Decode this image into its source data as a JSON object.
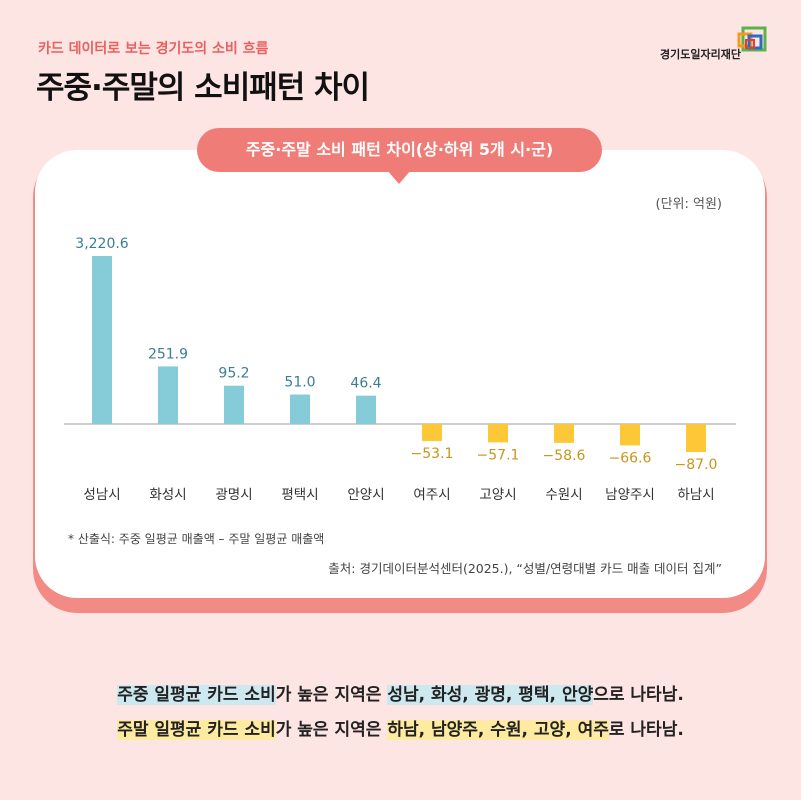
{
  "header": {
    "subtitle": "카드 데이터로 보는 경기도의 소비 흐름",
    "title": "주중·주말의 소비패턴 차이",
    "logo_text": "경기도일자리재단"
  },
  "chart_data": {
    "type": "bar",
    "title": "주중·주말 소비 패턴 차이(상·하위 5개 시·군)",
    "unit": "(단위: 억원)",
    "categories": [
      "성남시",
      "화성시",
      "광명시",
      "평택시",
      "안양시",
      "여주시",
      "고양시",
      "수원시",
      "남양주시",
      "하남시"
    ],
    "values": [
      3220.6,
      251.9,
      95.2,
      51.0,
      46.4,
      -53.1,
      -57.1,
      -58.6,
      -66.6,
      -87.0
    ],
    "value_labels": [
      "3,220.6",
      "251.9",
      "95.2",
      "51.0",
      "46.4",
      "−53.1",
      "−57.1",
      "−58.6",
      "−66.6",
      "−87.0"
    ],
    "colors": {
      "positive": "#86cbd8",
      "negative": "#fdc837",
      "positive_label": "#3b7e93",
      "negative_label": "#c9951b"
    },
    "xlabel": "",
    "ylabel": ""
  },
  "footnote": "*  산출식: 주중 일평균 매출액 – 주말 일평균 매출액",
  "source": "출처: 경기데이터분석센터(2025.), “성별/연령대별 카드 매출 데이터 집계”",
  "summary": {
    "line1": {
      "hl1": "주중 일평균 카드 소비",
      "mid": "가 높은 지역은 ",
      "hl2": "성남, 화성, 광명, 평택, 안양",
      "end": "으로 나타남."
    },
    "line2": {
      "hl1": "주말 일평균 카드 소비",
      "mid": "가 높은 지역은 ",
      "hl2": "하남, 남양주, 수원, 고양, 여주",
      "end": "로 나타남."
    }
  }
}
